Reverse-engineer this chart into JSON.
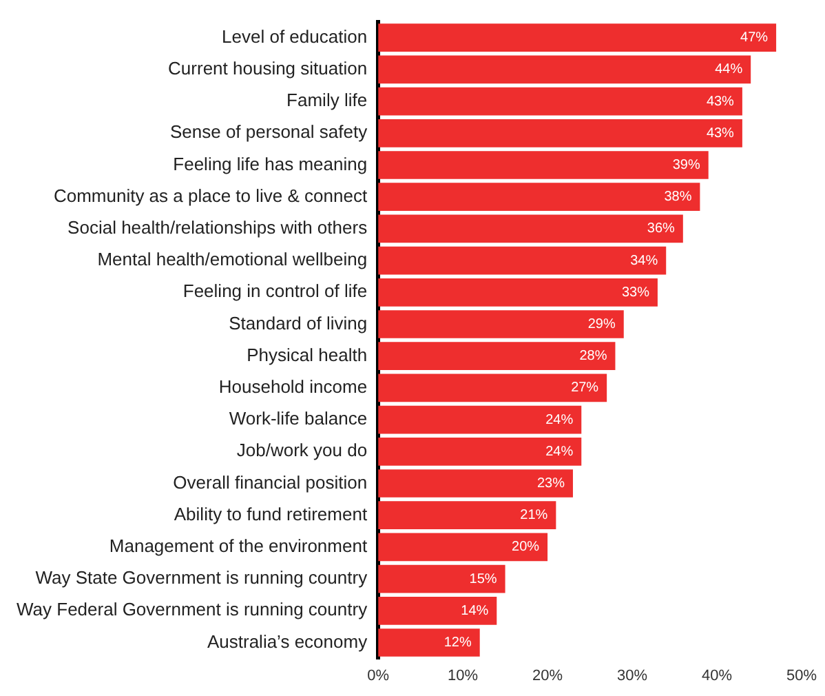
{
  "chart_data": {
    "type": "bar",
    "orientation": "horizontal",
    "color": "#ee2e2e",
    "categories": [
      "Level of education",
      "Current housing situation",
      "Family life",
      "Sense of personal safety",
      "Feeling life has meaning",
      "Community as a place to live & connect",
      "Social health/relationships with others",
      "Mental health/emotional wellbeing",
      "Feeling in control of life",
      "Standard of living",
      "Physical health",
      "Household income",
      "Work-life balance",
      "Job/work you do",
      "Overall financial position",
      "Ability to fund retirement",
      "Management of the environment",
      "Way State Government is running country",
      "Way Federal Government is running country",
      "Australia’s economy"
    ],
    "values": [
      47,
      44,
      43,
      43,
      39,
      38,
      36,
      34,
      33,
      29,
      28,
      27,
      24,
      24,
      23,
      21,
      20,
      15,
      14,
      12
    ],
    "value_labels": [
      "47%",
      "44%",
      "43%",
      "43%",
      "39%",
      "38%",
      "36%",
      "34%",
      "33%",
      "29%",
      "28%",
      "27%",
      "24%",
      "24%",
      "23%",
      "21%",
      "20%",
      "15%",
      "14%",
      "12%"
    ],
    "xlim": [
      0,
      50
    ],
    "xticks": [
      {
        "value": 0,
        "label": "0%"
      },
      {
        "value": 10,
        "label": "10%"
      },
      {
        "value": 20,
        "label": "20%"
      },
      {
        "value": 30,
        "label": "30%"
      },
      {
        "value": 40,
        "label": "40%"
      },
      {
        "value": 50,
        "label": "50%"
      }
    ],
    "grid": false,
    "legend": false
  }
}
